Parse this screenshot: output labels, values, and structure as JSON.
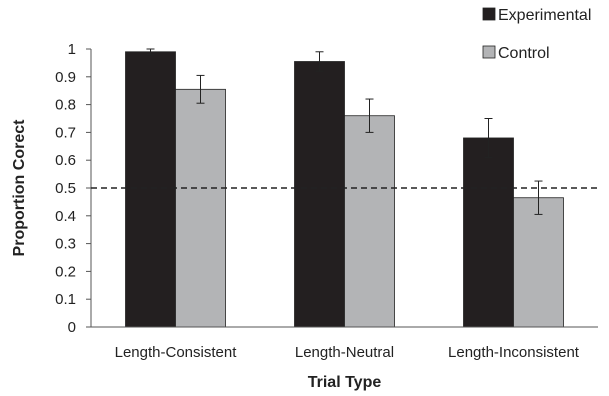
{
  "chart_data": {
    "type": "bar",
    "title": "",
    "xlabel": "Trial Type",
    "ylabel": "Proportion Corect",
    "ylim": [
      0,
      1
    ],
    "yticks": [
      "0",
      "0.1",
      "0.2",
      "0.3",
      "0.4",
      "0.5",
      "0.6",
      "0.7",
      "0.8",
      "0.9",
      "1"
    ],
    "categories": [
      "Length-Consistent",
      "Length-Neutral",
      "Length-Inconsistent"
    ],
    "series": [
      {
        "name": "Experimental",
        "color": "#231f20",
        "values": [
          0.99,
          0.955,
          0.68
        ],
        "errors": [
          0.01,
          0.035,
          0.07
        ]
      },
      {
        "name": "Control",
        "color": "#b3b4b6",
        "values": [
          0.855,
          0.76,
          0.465
        ],
        "errors": [
          0.05,
          0.06,
          0.06
        ]
      }
    ],
    "reference_line": {
      "value": 0.5,
      "style": "dashed"
    },
    "grid": false,
    "legend_position": "top-right"
  }
}
